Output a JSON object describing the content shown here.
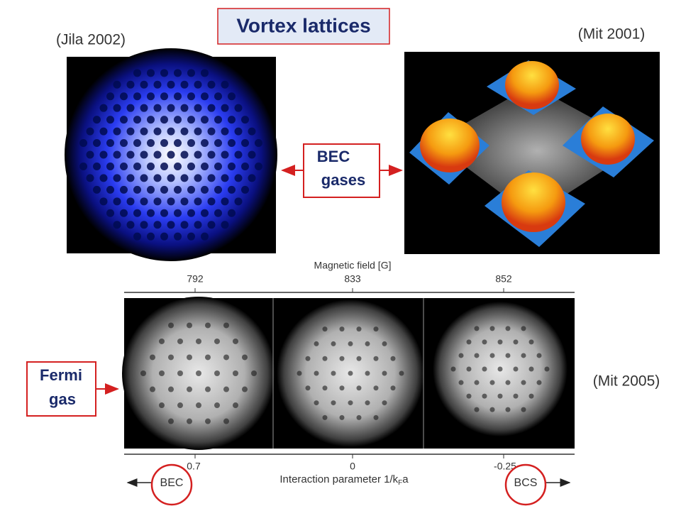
{
  "title": "Vortex lattices",
  "labels": {
    "jila": "(Jila 2002)",
    "mit2001": "(Mit 2001)",
    "mit2005": "(Mit 2005)"
  },
  "bec_box": [
    "BEC",
    "gases"
  ],
  "fermi_box": [
    "Fermi",
    "gas"
  ],
  "figure": {
    "top_axis_title": "Magnetic field [G]",
    "top_ticks": [
      "792",
      "833",
      "852"
    ],
    "bottom_ticks": [
      "0.7",
      "0",
      "-0.25"
    ],
    "bottom_axis_title": {
      "text": "Interaction parameter 1/k",
      "subscript": "F",
      "suffix": "a"
    },
    "bec": "BEC",
    "bcs": "BCS"
  }
}
